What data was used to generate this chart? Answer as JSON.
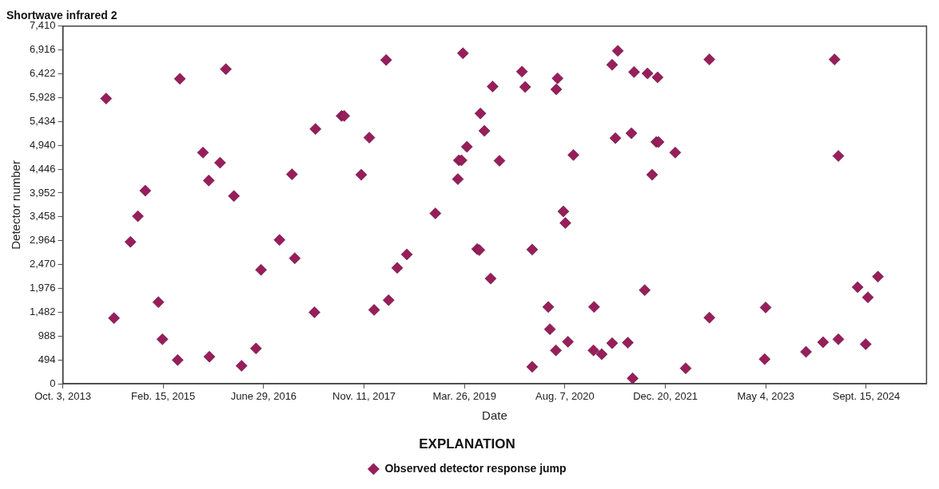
{
  "chart_data": {
    "type": "scatter",
    "title": "Shortwave infrared 2",
    "xlabel": "Date",
    "ylabel": "Detector number",
    "legend_title": "EXPLANATION",
    "legend": "bottom",
    "marker": "diamond",
    "grid": false,
    "xlim": [
      "2013-10-03",
      "2025-07-12"
    ],
    "xticks": [
      {
        "value": "2013-10-03",
        "label": "Oct. 3, 2013"
      },
      {
        "value": "2015-02-15",
        "label": "Feb. 15, 2015"
      },
      {
        "value": "2016-06-29",
        "label": "June 29, 2016"
      },
      {
        "value": "2017-11-11",
        "label": "Nov. 11, 2017"
      },
      {
        "value": "2019-03-26",
        "label": "Mar. 26, 2019"
      },
      {
        "value": "2020-08-07",
        "label": "Aug. 7, 2020"
      },
      {
        "value": "2021-12-20",
        "label": "Dec. 20, 2021"
      },
      {
        "value": "2023-05-04",
        "label": "May 4, 2023"
      },
      {
        "value": "2024-09-15",
        "label": "Sept. 15, 2024"
      }
    ],
    "ylim": [
      0,
      7410
    ],
    "yticks": [
      0,
      {
        "value": 494,
        "label": "494"
      },
      {
        "value": 988,
        "label": "988"
      },
      {
        "value": 1482,
        "label": "1,482"
      },
      {
        "value": 1976,
        "label": "1,976"
      },
      {
        "value": 2470,
        "label": "2,470"
      },
      {
        "value": 2964,
        "label": "2,964"
      },
      {
        "value": 3458,
        "label": "3,458"
      },
      {
        "value": 3952,
        "label": "3,952"
      },
      {
        "value": 4446,
        "label": "4,446"
      },
      {
        "value": 4940,
        "label": "4,940"
      },
      {
        "value": 5434,
        "label": "5,434"
      },
      {
        "value": 5928,
        "label": "5,928"
      },
      {
        "value": 6422,
        "label": "6,422"
      },
      {
        "value": 6916,
        "label": "6,916"
      },
      {
        "value": 7410,
        "label": "7,410"
      }
    ],
    "series": [
      {
        "name": "Observed detector response jump",
        "color": "#981e5b",
        "x": [
          "2014-05-07",
          "2014-06-15",
          "2014-09-05",
          "2014-10-12",
          "2014-11-18",
          "2015-01-22",
          "2015-02-11",
          "2015-04-28",
          "2015-05-09",
          "2015-09-01",
          "2015-09-30",
          "2015-10-03",
          "2015-11-25",
          "2015-12-24",
          "2016-02-02",
          "2016-03-11",
          "2016-05-22",
          "2016-06-16",
          "2016-09-16",
          "2016-11-17",
          "2016-12-01",
          "2017-03-09",
          "2017-03-14",
          "2017-07-22",
          "2017-08-04",
          "2017-10-28",
          "2017-12-07",
          "2017-12-31",
          "2018-03-01",
          "2018-03-13",
          "2018-04-25",
          "2018-06-12",
          "2018-11-01",
          "2019-02-21",
          "2019-02-26",
          "2019-03-11",
          "2019-03-18",
          "2019-04-07",
          "2019-05-28",
          "2019-06-08",
          "2019-06-13",
          "2019-07-03",
          "2019-08-03",
          "2019-08-13",
          "2019-09-16",
          "2020-01-06",
          "2020-01-22",
          "2020-02-26",
          "2020-02-26",
          "2020-05-16",
          "2020-05-24",
          "2020-06-23",
          "2020-06-25",
          "2020-07-01",
          "2020-07-30",
          "2020-08-09",
          "2020-08-22",
          "2020-09-18",
          "2020-12-27",
          "2020-12-30",
          "2021-02-06",
          "2021-03-30",
          "2021-03-30",
          "2021-04-15",
          "2021-04-27",
          "2021-06-16",
          "2021-07-04",
          "2021-07-10",
          "2021-07-17",
          "2021-09-08",
          "2021-09-22",
          "2021-10-15",
          "2021-11-05",
          "2021-11-11",
          "2021-11-16",
          "2022-02-07",
          "2022-03-31",
          "2022-07-27",
          "2022-07-27",
          "2023-04-28",
          "2023-05-03",
          "2023-11-20",
          "2024-02-13",
          "2024-04-10",
          "2024-04-29",
          "2024-04-29",
          "2024-08-03",
          "2024-09-12",
          "2024-09-23",
          "2024-11-12"
        ],
        "values": [
          5910,
          1360,
          2940,
          3470,
          4000,
          1690,
          920,
          490,
          6320,
          4790,
          4210,
          560,
          4580,
          6520,
          3890,
          370,
          730,
          2360,
          2980,
          4340,
          2600,
          1480,
          5280,
          5550,
          5550,
          4330,
          5100,
          1530,
          6710,
          1730,
          2400,
          2680,
          3530,
          4240,
          4630,
          4630,
          6850,
          4910,
          2790,
          2770,
          5600,
          5240,
          2180,
          6160,
          4620,
          6470,
          6150,
          2780,
          350,
          1590,
          1130,
          690,
          6100,
          6330,
          3570,
          3330,
          870,
          4740,
          690,
          1590,
          610,
          6610,
          840,
          5090,
          6900,
          850,
          5190,
          110,
          6460,
          1940,
          6430,
          4330,
          5010,
          6350,
          5010,
          4790,
          320,
          6720,
          1370,
          510,
          1580,
          660,
          860,
          6720,
          920,
          4720,
          2000,
          820,
          1790,
          2220
        ]
      }
    ]
  }
}
